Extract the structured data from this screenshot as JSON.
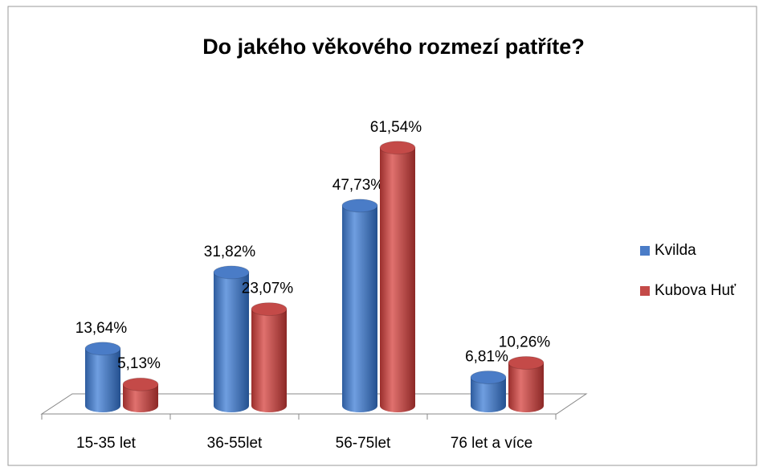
{
  "chart_data": {
    "type": "bar3d",
    "title": "Do jakého věkového rozmezí patříte?",
    "categories": [
      "15-35 let",
      "36-55let",
      "56-75let",
      "76 let a více"
    ],
    "series": [
      {
        "name": "Kvilda",
        "color": "#4a7cc7",
        "values": [
          13.64,
          31.82,
          47.73,
          6.81
        ],
        "value_labels": [
          "13,64%",
          "31,82%",
          "47,73%",
          "6,81%"
        ]
      },
      {
        "name": "Kubova Huť",
        "color": "#c44a48",
        "values": [
          5.13,
          23.07,
          61.54,
          10.26
        ],
        "value_labels": [
          "5,13%",
          "23,07%",
          "61,54%",
          "10,26%"
        ]
      }
    ],
    "legend": "right"
  }
}
